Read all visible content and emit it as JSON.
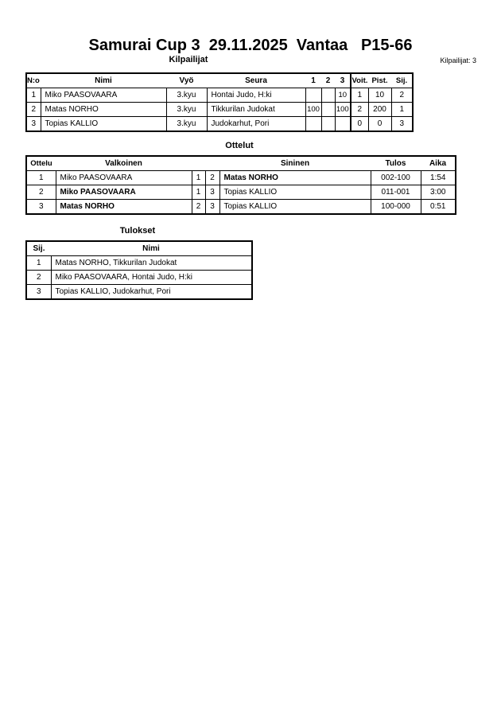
{
  "title": "Samurai Cup 3  29.11.2025  Vantaa   P15-66",
  "competitors": {
    "heading": "Kilpailijat",
    "count_label": "Kilpailijat: 3",
    "columns": [
      "N:o",
      "Nimi",
      "Vyö",
      "Seura",
      "1",
      "2",
      "3",
      "Voit.",
      "Pist.",
      "Sij."
    ],
    "rows": [
      [
        "1",
        "Miko PAASOVAARA",
        "3.kyu",
        "Hontai Judo, H:ki",
        "",
        "",
        "10",
        "1",
        "10",
        "2"
      ],
      [
        "2",
        "Matas NORHO",
        "3.kyu",
        "Tikkurilan Judokat",
        "100",
        "",
        "100",
        "2",
        "200",
        "1"
      ],
      [
        "3",
        "Topias KALLIO",
        "3.kyu",
        "Judokarhut, Pori",
        "",
        "",
        "",
        "0",
        "0",
        "3"
      ]
    ]
  },
  "matches": {
    "heading": "Ottelut",
    "columns": [
      "Ottelu",
      "Valkoinen",
      "Sininen",
      "Tulos",
      "Aika"
    ],
    "rows": [
      {
        "no": "1",
        "white": "Miko PAASOVAARA",
        "white_no": "1",
        "blue_no": "2",
        "blue": "Matas NORHO",
        "result": "002-100",
        "time": "1:54",
        "winner": "blue"
      },
      {
        "no": "2",
        "white": "Miko PAASOVAARA",
        "white_no": "1",
        "blue_no": "3",
        "blue": "Topias KALLIO",
        "result": "011-001",
        "time": "3:00",
        "winner": "white"
      },
      {
        "no": "3",
        "white": "Matas NORHO",
        "white_no": "2",
        "blue_no": "3",
        "blue": "Topias KALLIO",
        "result": "100-000",
        "time": "0:51",
        "winner": "white"
      }
    ]
  },
  "results": {
    "heading": "Tulokset",
    "columns": [
      "Sij.",
      "Nimi"
    ],
    "rows": [
      [
        "1",
        "Matas NORHO, Tikkurilan Judokat"
      ],
      [
        "2",
        "Miko PAASOVAARA, Hontai Judo, H:ki"
      ],
      [
        "3",
        "Topias KALLIO, Judokarhut, Pori"
      ]
    ]
  }
}
